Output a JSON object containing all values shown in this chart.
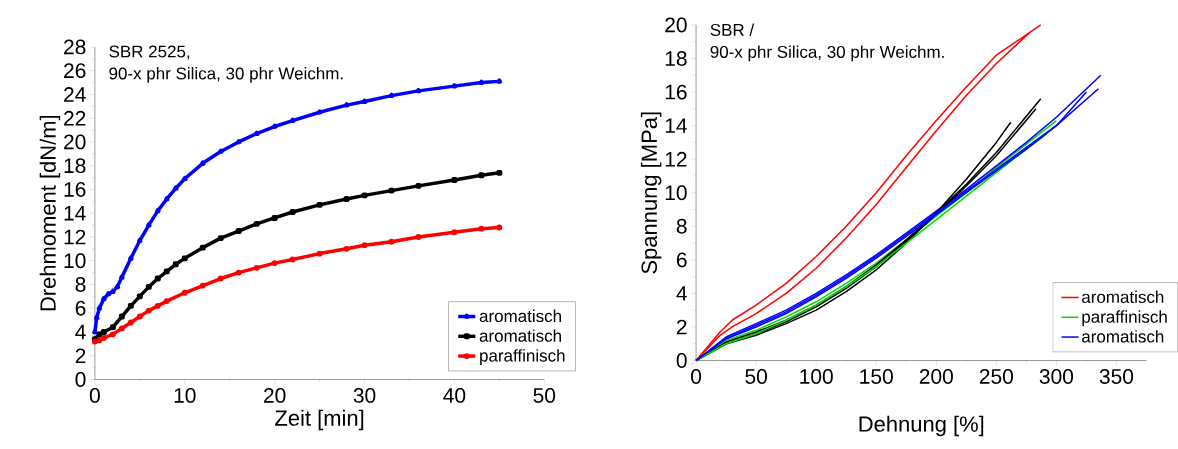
{
  "chart_data": [
    {
      "type": "line",
      "annotations": [
        "SBR 2525,",
        "90-x phr Silica, 30 phr Weichm."
      ],
      "xlabel": "Zeit [min]",
      "ylabel": "Drehmoment [dN/m]",
      "xlim": [
        0,
        50
      ],
      "ylim": [
        0,
        28
      ],
      "xticks": [
        0,
        10,
        20,
        30,
        40,
        50
      ],
      "yticks": [
        0,
        2,
        4,
        6,
        8,
        10,
        12,
        14,
        16,
        18,
        20,
        22,
        24,
        26,
        28
      ],
      "legend": "bottom right",
      "series": [
        {
          "name": "aromatisch",
          "color": "#0000ff",
          "marker": "triangle",
          "x": [
            0,
            0.2,
            0.5,
            1,
            1.5,
            2,
            2.5,
            3,
            4,
            5,
            6,
            7,
            8,
            9,
            10,
            12,
            14,
            16,
            18,
            20,
            22,
            25,
            28,
            30,
            33,
            36,
            40,
            43,
            45
          ],
          "values": [
            4.0,
            5.2,
            6.0,
            6.8,
            7.2,
            7.4,
            7.8,
            8.6,
            10.2,
            11.7,
            13.0,
            14.2,
            15.2,
            16.1,
            16.9,
            18.2,
            19.2,
            20.0,
            20.7,
            21.3,
            21.8,
            22.5,
            23.1,
            23.4,
            23.9,
            24.3,
            24.7,
            25.0,
            25.1
          ]
        },
        {
          "name": "aromatisch",
          "color": "#000000",
          "marker": "square",
          "x": [
            0,
            0.5,
            1,
            2,
            3,
            4,
            5,
            6,
            7,
            8,
            9,
            10,
            12,
            14,
            16,
            18,
            20,
            22,
            25,
            28,
            30,
            33,
            36,
            40,
            43,
            45
          ],
          "values": [
            3.4,
            3.8,
            4.0,
            4.4,
            5.3,
            6.2,
            7.0,
            7.8,
            8.5,
            9.1,
            9.7,
            10.2,
            11.1,
            11.9,
            12.5,
            13.1,
            13.6,
            14.1,
            14.7,
            15.2,
            15.5,
            15.9,
            16.3,
            16.8,
            17.2,
            17.4
          ]
        },
        {
          "name": "paraffinisch",
          "color": "#ff0000",
          "marker": "circle",
          "x": [
            0,
            0.5,
            1,
            2,
            3,
            4,
            5,
            6,
            7,
            8,
            10,
            12,
            14,
            16,
            18,
            20,
            22,
            25,
            28,
            30,
            33,
            36,
            40,
            43,
            45
          ],
          "values": [
            3.2,
            3.3,
            3.5,
            3.8,
            4.3,
            4.8,
            5.3,
            5.8,
            6.2,
            6.6,
            7.3,
            7.9,
            8.5,
            9.0,
            9.4,
            9.8,
            10.1,
            10.6,
            11.0,
            11.3,
            11.6,
            12.0,
            12.4,
            12.7,
            12.8
          ]
        }
      ]
    },
    {
      "type": "line",
      "annotations": [
        "SBR /",
        "90-x phr Silica, 30 phr Weichm."
      ],
      "xlabel": "Dehnung [%]",
      "ylabel": "Spannung [MPa]",
      "xlim": [
        0,
        375
      ],
      "ylim": [
        0,
        20
      ],
      "xticks": [
        0,
        50,
        100,
        150,
        200,
        250,
        300,
        350
      ],
      "yticks": [
        0,
        2,
        4,
        6,
        8,
        10,
        12,
        14,
        16,
        18,
        20
      ],
      "legend": "bottom right",
      "series": [
        {
          "name": "aromatisch",
          "color": "#ff0000",
          "x": [
            0,
            20,
            30,
            50,
            75,
            100,
            125,
            150,
            175,
            200,
            225,
            250,
            287
          ],
          "values": [
            0,
            1.7,
            2.4,
            3.3,
            4.6,
            6.2,
            8.0,
            10.0,
            12.2,
            14.3,
            16.3,
            18.2,
            20.0
          ]
        },
        {
          "name": "paraffinisch",
          "color": "#00dd00",
          "x": [
            0,
            25,
            50,
            75,
            100,
            125,
            150,
            175,
            200,
            225,
            250,
            275,
            300
          ],
          "values": [
            0,
            1.2,
            1.8,
            2.6,
            3.5,
            4.6,
            5.8,
            7.2,
            8.6,
            10.0,
            11.5,
            12.9,
            14.3
          ]
        },
        {
          "name": "aromatisch",
          "color": "#0000ff",
          "x": [
            0,
            25,
            50,
            75,
            100,
            125,
            150,
            175,
            200,
            225,
            250,
            275,
            300,
            337
          ],
          "values": [
            0,
            1.4,
            2.2,
            3.0,
            4.0,
            5.1,
            6.3,
            7.6,
            8.9,
            10.2,
            11.6,
            13.0,
            14.5,
            17.0
          ]
        },
        {
          "color": "#ff0000",
          "x": [
            0,
            20,
            30,
            50,
            75,
            100,
            125,
            150,
            175,
            200,
            225,
            250,
            277
          ],
          "values": [
            0,
            1.5,
            2.0,
            2.8,
            4.0,
            5.5,
            7.3,
            9.3,
            11.5,
            13.7,
            15.8,
            17.7,
            19.5
          ]
        },
        {
          "color": "#000000",
          "x": [
            0,
            25,
            50,
            75,
            100,
            125,
            150,
            175,
            200,
            225,
            250,
            262
          ],
          "values": [
            0,
            1.0,
            1.5,
            2.2,
            3.0,
            4.1,
            5.4,
            7.0,
            8.8,
            10.8,
            13.0,
            14.2
          ]
        },
        {
          "color": "#000000",
          "x": [
            0,
            25,
            50,
            75,
            100,
            125,
            150,
            175,
            200,
            225,
            250,
            283
          ],
          "values": [
            0,
            1.0,
            1.6,
            2.3,
            3.2,
            4.3,
            5.6,
            7.1,
            8.7,
            10.4,
            12.2,
            15.0
          ]
        },
        {
          "color": "#000000",
          "x": [
            0,
            25,
            50,
            75,
            100,
            125,
            150,
            175,
            200,
            225,
            250,
            287
          ],
          "values": [
            0,
            1.1,
            1.7,
            2.4,
            3.3,
            4.4,
            5.7,
            7.2,
            8.8,
            10.5,
            12.4,
            15.6
          ]
        },
        {
          "color": "#00dd00",
          "x": [
            0,
            25,
            50,
            75,
            100,
            125,
            150,
            175,
            200,
            225,
            250,
            275,
            292
          ],
          "values": [
            0,
            1.0,
            1.6,
            2.4,
            3.3,
            4.4,
            5.6,
            7.0,
            8.4,
            9.8,
            11.2,
            12.6,
            13.5
          ]
        },
        {
          "color": "#0000ff",
          "x": [
            0,
            25,
            50,
            75,
            100,
            125,
            150,
            175,
            200,
            225,
            250,
            275,
            300,
            335
          ],
          "values": [
            0,
            1.3,
            2.1,
            2.9,
            3.9,
            5.0,
            6.2,
            7.5,
            8.8,
            10.1,
            11.4,
            12.7,
            14.0,
            16.2
          ]
        },
        {
          "color": "#0000ff",
          "x": [
            0,
            25,
            50,
            75,
            100,
            125,
            150,
            175,
            200,
            225,
            250,
            275,
            300,
            325
          ],
          "values": [
            0,
            1.3,
            2.0,
            2.8,
            3.8,
            4.9,
            6.1,
            7.4,
            8.7,
            10.0,
            11.3,
            12.6,
            14.0,
            16.0
          ]
        }
      ]
    }
  ]
}
